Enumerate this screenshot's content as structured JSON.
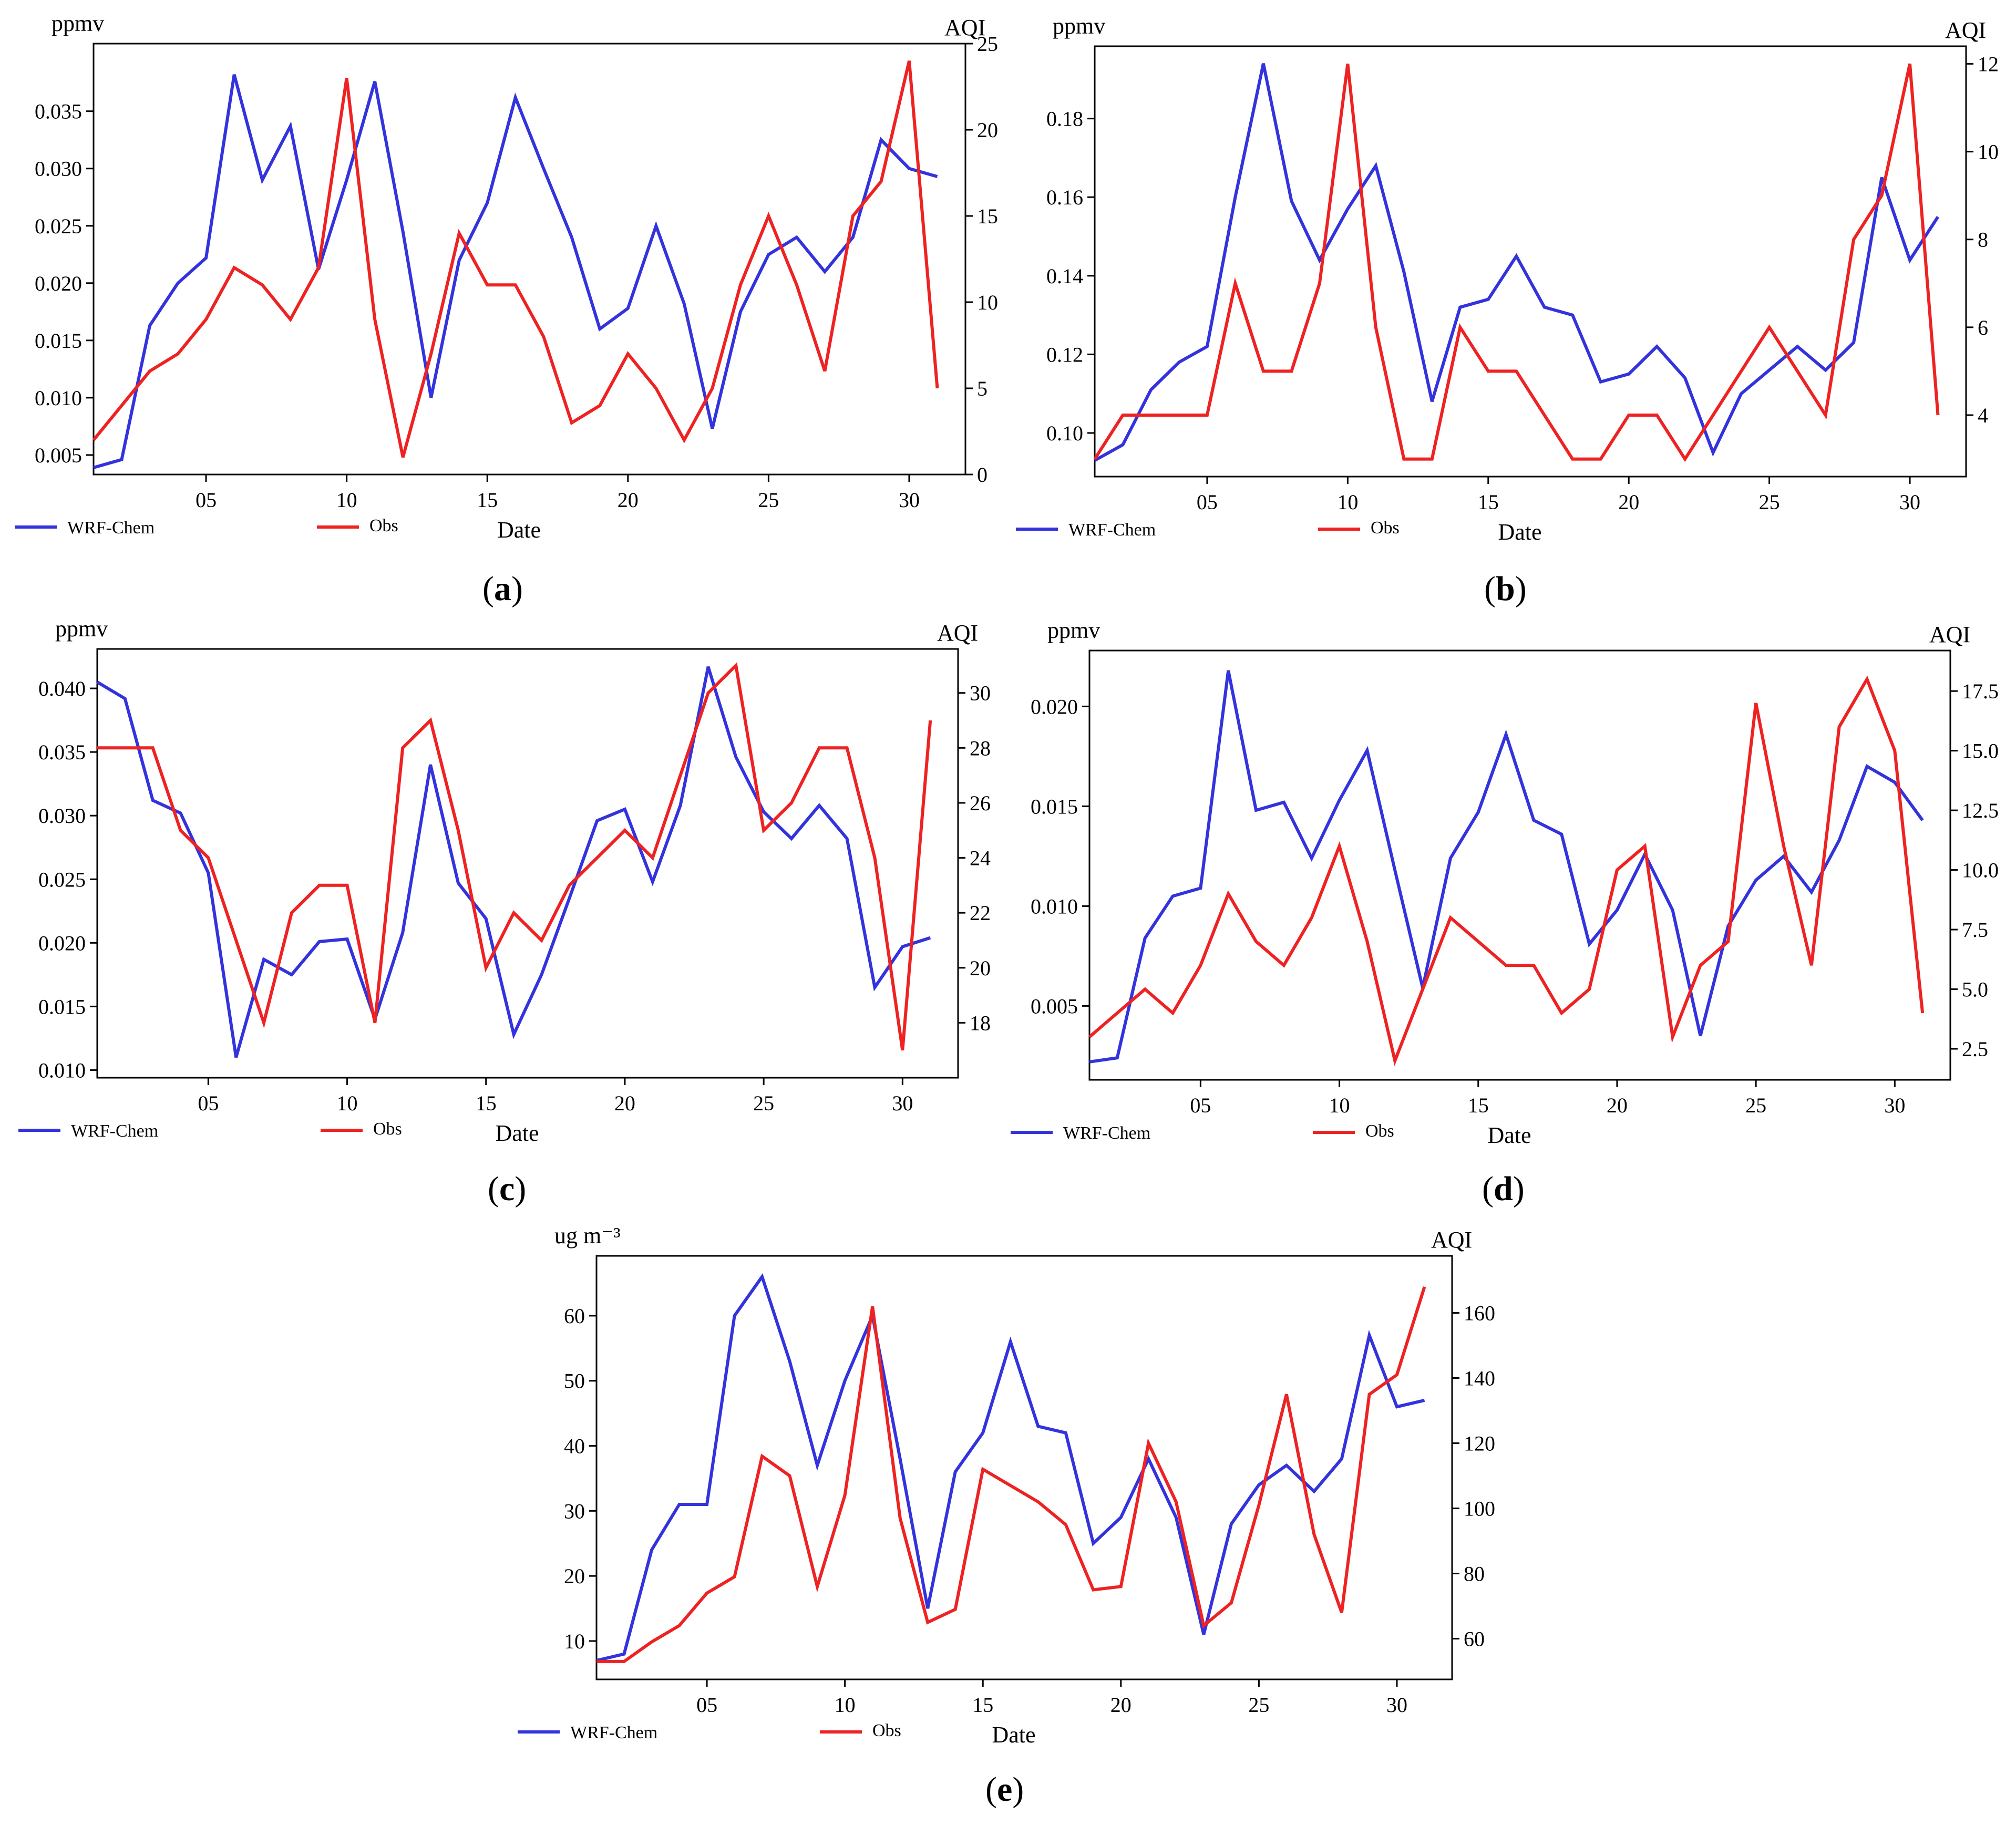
{
  "colors": {
    "model": "#3333dd",
    "obs": "#ee2222",
    "axis": "#000000"
  },
  "legend": {
    "model": "WRF-Chem",
    "obs": "Obs"
  },
  "xlabel": "Date",
  "panels": [
    {
      "id": "a",
      "label": "a",
      "y_left_unit": "ppmv",
      "y_right_unit": "AQI"
    },
    {
      "id": "b",
      "label": "b",
      "y_left_unit": "ppmv",
      "y_right_unit": "AQI"
    },
    {
      "id": "c",
      "label": "c",
      "y_left_unit": "ppmv",
      "y_right_unit": "AQI"
    },
    {
      "id": "d",
      "label": "d",
      "y_left_unit": "ppmv",
      "y_right_unit": "AQI"
    },
    {
      "id": "e",
      "label": "e",
      "y_left_unit": "ug m⁻³",
      "y_right_unit": "AQI"
    }
  ],
  "chart_data": [
    {
      "type": "line",
      "panel": "a",
      "x": [
        1,
        2,
        3,
        4,
        5,
        6,
        7,
        8,
        9,
        10,
        11,
        12,
        13,
        14,
        15,
        16,
        17,
        18,
        19,
        20,
        21,
        22,
        23,
        24,
        25,
        26,
        27,
        28,
        29,
        30,
        31
      ],
      "xlim": [
        1,
        32
      ],
      "xticks": [
        5,
        10,
        15,
        20,
        25,
        30
      ],
      "xticklabels": [
        "05",
        "10",
        "15",
        "20",
        "25",
        "30"
      ],
      "xlabel": "Date",
      "ylabel_left": "ppmv",
      "ylabel_right": "AQI",
      "ylim_left": [
        0.0033,
        0.0409
      ],
      "yticks_left": [
        0.005,
        0.01,
        0.015,
        0.02,
        0.025,
        0.03,
        0.035
      ],
      "yticklabels_left": [
        "0.005",
        "0.010",
        "0.015",
        "0.020",
        "0.025",
        "0.030",
        "0.035"
      ],
      "ylim_right": [
        0,
        25
      ],
      "yticks_right": [
        0,
        5,
        10,
        15,
        20,
        25
      ],
      "yticklabels_right": [
        "0",
        "5",
        "10",
        "15",
        "20",
        "25"
      ],
      "series": [
        {
          "name": "WRF-Chem",
          "axis": "left",
          "values": [
            0.0039,
            0.0046,
            0.0163,
            0.02,
            0.0222,
            0.0382,
            0.029,
            0.0337,
            0.0212,
            0.029,
            0.0376,
            0.0245,
            0.01,
            0.022,
            0.027,
            0.0362,
            0.03,
            0.024,
            0.016,
            0.0178,
            0.025,
            0.0182,
            0.0073,
            0.0175,
            0.0225,
            0.024,
            0.021,
            0.024,
            0.0325,
            0.03,
            0.0293
          ]
        },
        {
          "name": "Obs",
          "axis": "right",
          "values": [
            2,
            4,
            6,
            7,
            9,
            12,
            11,
            9,
            12,
            23,
            9,
            1,
            7,
            14,
            11,
            11,
            8,
            3,
            4,
            7,
            5,
            2,
            5,
            11,
            15,
            11,
            6,
            15,
            17,
            24,
            5
          ]
        }
      ]
    },
    {
      "type": "line",
      "panel": "b",
      "x": [
        1,
        2,
        3,
        4,
        5,
        6,
        7,
        8,
        9,
        10,
        11,
        12,
        13,
        14,
        15,
        16,
        17,
        18,
        19,
        20,
        21,
        22,
        23,
        24,
        25,
        26,
        27,
        28,
        29,
        30,
        31
      ],
      "xlim": [
        1,
        32
      ],
      "xticks": [
        5,
        10,
        15,
        20,
        25,
        30
      ],
      "xticklabels": [
        "05",
        "10",
        "15",
        "20",
        "25",
        "30"
      ],
      "xlabel": "Date",
      "ylabel_left": "ppmv",
      "ylabel_right": "AQI",
      "ylim_left": [
        0.0889,
        0.1984
      ],
      "yticks_left": [
        0.1,
        0.12,
        0.14,
        0.16,
        0.18
      ],
      "yticklabels_left": [
        "0.10",
        "0.12",
        "0.14",
        "0.16",
        "0.18"
      ],
      "ylim_right": [
        2.6,
        12.4
      ],
      "yticks_right": [
        4,
        6,
        8,
        10,
        12
      ],
      "yticklabels_right": [
        "4",
        "6",
        "8",
        "10",
        "12"
      ],
      "series": [
        {
          "name": "WRF-Chem",
          "axis": "left",
          "values": [
            0.093,
            0.097,
            0.111,
            0.118,
            0.122,
            0.16,
            0.194,
            0.159,
            0.144,
            0.157,
            0.168,
            0.141,
            0.108,
            0.132,
            0.134,
            0.145,
            0.132,
            0.13,
            0.113,
            0.115,
            0.122,
            0.114,
            0.095,
            0.11,
            0.116,
            0.122,
            0.116,
            0.123,
            0.165,
            0.144,
            0.155
          ]
        },
        {
          "name": "Obs",
          "axis": "right",
          "values": [
            3,
            4,
            4,
            4,
            4,
            7,
            5,
            5,
            7,
            12,
            6,
            3,
            3,
            6,
            5,
            5,
            4,
            3,
            3,
            4,
            4,
            3,
            4,
            5,
            6,
            5,
            4,
            8,
            9,
            12,
            4
          ]
        }
      ]
    },
    {
      "type": "line",
      "panel": "c",
      "x": [
        1,
        2,
        3,
        4,
        5,
        6,
        7,
        8,
        9,
        10,
        11,
        12,
        13,
        14,
        15,
        16,
        17,
        18,
        19,
        20,
        21,
        22,
        23,
        24,
        25,
        26,
        27,
        28,
        29,
        30,
        31
      ],
      "xlim": [
        1,
        32
      ],
      "xticks": [
        5,
        10,
        15,
        20,
        25,
        30
      ],
      "xticklabels": [
        "05",
        "10",
        "15",
        "20",
        "25",
        "30"
      ],
      "xlabel": "Date",
      "ylabel_left": "ppmv",
      "ylabel_right": "AQI",
      "ylim_left": [
        0.0094,
        0.0431
      ],
      "yticks_left": [
        0.01,
        0.015,
        0.02,
        0.025,
        0.03,
        0.035,
        0.04
      ],
      "yticklabels_left": [
        "0.010",
        "0.015",
        "0.020",
        "0.025",
        "0.030",
        "0.035",
        "0.040"
      ],
      "ylim_right": [
        16.0,
        31.6
      ],
      "yticks_right": [
        18,
        20,
        22,
        24,
        26,
        28,
        30
      ],
      "yticklabels_right": [
        "18",
        "20",
        "22",
        "24",
        "26",
        "28",
        "30"
      ],
      "series": [
        {
          "name": "WRF-Chem",
          "axis": "left",
          "values": [
            0.0405,
            0.0392,
            0.0312,
            0.0302,
            0.0255,
            0.011,
            0.0187,
            0.0175,
            0.0201,
            0.0203,
            0.014,
            0.0208,
            0.034,
            0.0247,
            0.0219,
            0.0128,
            0.0175,
            0.0235,
            0.0296,
            0.0305,
            0.0248,
            0.0308,
            0.0417,
            0.0346,
            0.0303,
            0.0282,
            0.0308,
            0.0282,
            0.0165,
            0.0197,
            0.0204
          ]
        },
        {
          "name": "Obs",
          "axis": "right",
          "values": [
            28,
            28,
            28,
            25,
            24,
            21,
            18,
            22,
            23,
            23,
            18,
            28,
            29,
            25,
            20,
            22,
            21,
            23,
            24,
            25,
            24,
            27,
            30,
            31,
            25,
            26,
            28,
            28,
            24,
            17,
            29
          ]
        }
      ]
    },
    {
      "type": "line",
      "panel": "d",
      "x": [
        1,
        2,
        3,
        4,
        5,
        6,
        7,
        8,
        9,
        10,
        11,
        12,
        13,
        14,
        15,
        16,
        17,
        18,
        19,
        20,
        21,
        22,
        23,
        24,
        25,
        26,
        27,
        28,
        29,
        30,
        31
      ],
      "xlim": [
        1,
        32
      ],
      "xticks": [
        5,
        10,
        15,
        20,
        25,
        30
      ],
      "xticklabels": [
        "05",
        "10",
        "15",
        "20",
        "25",
        "30"
      ],
      "xlabel": "Date",
      "ylabel_left": "ppmv",
      "ylabel_right": "AQI",
      "ylim_left": [
        0.0013,
        0.0228
      ],
      "yticks_left": [
        0.005,
        0.01,
        0.015,
        0.02
      ],
      "yticklabels_left": [
        "0.005",
        "0.010",
        "0.015",
        "0.020"
      ],
      "ylim_right": [
        1.2,
        19.2
      ],
      "yticks_right": [
        2.5,
        5.0,
        7.5,
        10.0,
        12.5,
        15.0,
        17.5
      ],
      "yticklabels_right": [
        "2.5",
        "5.0",
        "7.5",
        "10.0",
        "12.5",
        "15.0",
        "17.5"
      ],
      "series": [
        {
          "name": "WRF-Chem",
          "axis": "left",
          "values": [
            0.0022,
            0.0024,
            0.0084,
            0.0105,
            0.0109,
            0.0218,
            0.0148,
            0.0152,
            0.0124,
            0.0153,
            0.0178,
            0.0118,
            0.0059,
            0.0124,
            0.0147,
            0.0186,
            0.0143,
            0.0136,
            0.0081,
            0.0098,
            0.0126,
            0.0098,
            0.0035,
            0.009,
            0.0113,
            0.0125,
            0.0107,
            0.0133,
            0.017,
            0.0162,
            0.0143
          ]
        },
        {
          "name": "Obs",
          "axis": "right",
          "values": [
            3,
            4,
            5,
            4,
            6,
            9,
            7,
            6,
            8,
            11,
            7,
            2,
            5,
            8,
            7,
            6,
            6,
            4,
            5,
            10,
            11,
            3,
            6,
            7,
            17,
            11,
            6,
            16,
            18,
            15,
            4
          ]
        }
      ]
    },
    {
      "type": "line",
      "panel": "e",
      "x": [
        1,
        2,
        3,
        4,
        5,
        6,
        7,
        8,
        9,
        10,
        11,
        12,
        13,
        14,
        15,
        16,
        17,
        18,
        19,
        20,
        21,
        22,
        23,
        24,
        25,
        26,
        27,
        28,
        29,
        30,
        31
      ],
      "xlim": [
        1,
        32
      ],
      "xticks": [
        5,
        10,
        15,
        20,
        25,
        30
      ],
      "xticklabels": [
        "05",
        "10",
        "15",
        "20",
        "25",
        "30"
      ],
      "xlabel": "Date",
      "ylabel_left": "ug m⁻³",
      "ylabel_right": "AQI",
      "ylim_left": [
        4.1,
        69.2
      ],
      "yticks_left": [
        10,
        20,
        30,
        40,
        50,
        60
      ],
      "yticklabels_left": [
        "10",
        "20",
        "30",
        "40",
        "50",
        "60"
      ],
      "ylim_right": [
        47.5,
        177.5
      ],
      "yticks_right": [
        60,
        80,
        100,
        120,
        140,
        160
      ],
      "yticklabels_right": [
        "60",
        "80",
        "100",
        "120",
        "140",
        "160"
      ],
      "series": [
        {
          "name": "WRF-Chem",
          "axis": "left",
          "values": [
            7,
            8,
            24,
            31,
            31,
            60,
            66,
            53,
            37,
            50,
            60,
            38,
            15,
            36,
            42,
            56,
            43,
            42,
            25,
            29,
            38,
            29,
            11,
            28,
            34,
            37,
            33,
            38,
            57,
            46,
            47
          ]
        },
        {
          "name": "Obs",
          "axis": "right",
          "values": [
            53,
            53,
            59,
            64,
            74,
            79,
            116,
            110,
            76,
            104,
            162,
            97,
            65,
            69,
            112,
            107,
            102,
            95,
            75,
            76,
            120,
            102,
            64,
            71,
            101,
            135,
            92,
            68,
            135,
            141,
            168
          ]
        }
      ]
    }
  ]
}
